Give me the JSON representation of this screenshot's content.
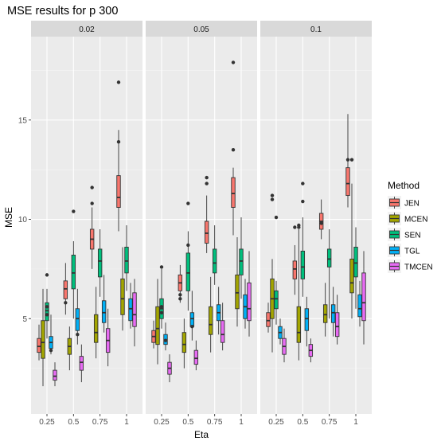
{
  "chart_data": {
    "type": "boxplot",
    "title": "MSE results for p 300",
    "xlabel": "Eta",
    "ylabel": "MSE",
    "ylim": [
      0.2,
      19.2
    ],
    "y_ticks": [
      5,
      10,
      15
    ],
    "x_ticks": [
      "0.25",
      "0.5",
      "0.75",
      "1"
    ],
    "legend": {
      "title": "Method",
      "position": "right",
      "entries": [
        {
          "name": "JEN",
          "color": "#F8766D"
        },
        {
          "name": "MCEN",
          "color": "#A3A500"
        },
        {
          "name": "SEN",
          "color": "#00BF7D"
        },
        {
          "name": "TGL",
          "color": "#00B0F6"
        },
        {
          "name": "TMCEN",
          "color": "#E76BF3"
        }
      ]
    },
    "grid": true,
    "panels": [
      {
        "label": "0.02",
        "groups": [
          {
            "eta": "0.25",
            "boxes": [
              {
                "method": "JEN",
                "min": 2.9,
                "q1": 3.3,
                "median": 3.6,
                "q3": 4.0,
                "max": 4.7,
                "outliers": []
              },
              {
                "method": "MCEN",
                "min": 1.6,
                "q1": 3.0,
                "median": 3.8,
                "q3": 4.9,
                "max": 6.5,
                "outliers": []
              },
              {
                "method": "SEN",
                "min": 4.0,
                "q1": 4.9,
                "median": 5.4,
                "q3": 5.8,
                "max": 6.5,
                "outliers": [
                  7.2,
                  5.6,
                  5.2
                ]
              },
              {
                "method": "TGL",
                "min": 3.2,
                "q1": 3.5,
                "median": 3.8,
                "q3": 4.1,
                "max": 5.2,
                "outliers": [
                  3.4
                ]
              },
              {
                "method": "TMCEN",
                "min": 1.6,
                "q1": 1.9,
                "median": 2.1,
                "q3": 2.4,
                "max": 2.8,
                "outliers": []
              }
            ]
          },
          {
            "eta": "0.5",
            "boxes": [
              {
                "method": "JEN",
                "min": 5.2,
                "q1": 6.0,
                "median": 6.5,
                "q3": 6.9,
                "max": 7.8,
                "outliers": [
                  5.8
                ]
              },
              {
                "method": "MCEN",
                "min": 2.4,
                "q1": 3.2,
                "median": 3.6,
                "q3": 4.0,
                "max": 4.6,
                "outliers": []
              },
              {
                "method": "SEN",
                "min": 5.0,
                "q1": 6.5,
                "median": 7.3,
                "q3": 8.2,
                "max": 8.9,
                "outliers": [
                  10.4
                ]
              },
              {
                "method": "TGL",
                "min": 3.7,
                "q1": 4.4,
                "median": 5.0,
                "q3": 5.5,
                "max": 6.5,
                "outliers": [
                  4.2
                ]
              },
              {
                "method": "TMCEN",
                "min": 1.8,
                "q1": 2.4,
                "median": 2.8,
                "q3": 3.1,
                "max": 3.7,
                "outliers": []
              }
            ]
          },
          {
            "eta": "0.75",
            "boxes": [
              {
                "method": "JEN",
                "min": 7.5,
                "q1": 8.5,
                "median": 9.0,
                "q3": 9.5,
                "max": 10.6,
                "outliers": [
                  11.6,
                  10.8
                ]
              },
              {
                "method": "MCEN",
                "min": 3.0,
                "q1": 3.8,
                "median": 4.3,
                "q3": 5.2,
                "max": 6.6,
                "outliers": []
              },
              {
                "method": "SEN",
                "min": 6.1,
                "q1": 7.1,
                "median": 7.9,
                "q3": 8.5,
                "max": 9.5,
                "outliers": []
              },
              {
                "method": "TGL",
                "min": 4.3,
                "q1": 4.8,
                "median": 5.3,
                "q3": 5.9,
                "max": 7.2,
                "outliers": []
              },
              {
                "method": "TMCEN",
                "min": 2.6,
                "q1": 3.3,
                "median": 3.9,
                "q3": 4.5,
                "max": 5.5,
                "outliers": []
              }
            ]
          },
          {
            "eta": "1",
            "boxes": [
              {
                "method": "JEN",
                "min": 9.4,
                "q1": 10.6,
                "median": 11.1,
                "q3": 12.2,
                "max": 14.5,
                "outliers": [
                  16.9,
                  13.9
                ]
              },
              {
                "method": "MCEN",
                "min": 4.4,
                "q1": 5.2,
                "median": 6.0,
                "q3": 7.0,
                "max": 8.6,
                "outliers": []
              },
              {
                "method": "SEN",
                "min": 6.4,
                "q1": 7.3,
                "median": 7.9,
                "q3": 8.6,
                "max": 9.7,
                "outliers": []
              },
              {
                "method": "TGL",
                "min": 4.5,
                "q1": 4.9,
                "median": 5.5,
                "q3": 6.0,
                "max": 6.8,
                "outliers": []
              },
              {
                "method": "TMCEN",
                "min": 3.6,
                "q1": 4.6,
                "median": 5.2,
                "q3": 6.3,
                "max": 7.0,
                "outliers": []
              }
            ]
          }
        ]
      },
      {
        "label": "0.05",
        "groups": [
          {
            "eta": "0.25",
            "boxes": [
              {
                "method": "JEN",
                "min": 3.5,
                "q1": 3.8,
                "median": 4.1,
                "q3": 4.4,
                "max": 4.9,
                "outliers": []
              },
              {
                "method": "MCEN",
                "min": 2.7,
                "q1": 3.7,
                "median": 4.5,
                "q3": 5.6,
                "max": 7.0,
                "outliers": []
              },
              {
                "method": "SEN",
                "min": 4.5,
                "q1": 5.0,
                "median": 5.5,
                "q3": 6.0,
                "max": 7.5,
                "outliers": [
                  7.6,
                  5.6,
                  5.3
                ]
              },
              {
                "method": "TGL",
                "min": 3.4,
                "q1": 3.7,
                "median": 3.9,
                "q3": 4.2,
                "max": 4.8,
                "outliers": [
                  3.9
                ]
              },
              {
                "method": "TMCEN",
                "min": 1.8,
                "q1": 2.2,
                "median": 2.5,
                "q3": 2.8,
                "max": 3.2,
                "outliers": []
              }
            ]
          },
          {
            "eta": "0.5",
            "boxes": [
              {
                "method": "JEN",
                "min": 5.8,
                "q1": 6.4,
                "median": 6.8,
                "q3": 7.2,
                "max": 7.7,
                "outliers": [
                  6.2,
                  6.0
                ]
              },
              {
                "method": "MCEN",
                "min": 2.5,
                "q1": 3.3,
                "median": 3.7,
                "q3": 4.3,
                "max": 5.0,
                "outliers": []
              },
              {
                "method": "SEN",
                "min": 5.4,
                "q1": 6.4,
                "median": 7.3,
                "q3": 8.3,
                "max": 9.4,
                "outliers": [
                  10.8,
                  8.7
                ]
              },
              {
                "method": "TGL",
                "min": 3.9,
                "q1": 4.6,
                "median": 5.0,
                "q3": 5.3,
                "max": 6.4,
                "outliers": [
                  4.6
                ]
              },
              {
                "method": "TMCEN",
                "min": 2.4,
                "q1": 2.7,
                "median": 3.0,
                "q3": 3.4,
                "max": 3.9,
                "outliers": []
              }
            ]
          },
          {
            "eta": "0.75",
            "boxes": [
              {
                "method": "JEN",
                "min": 8.3,
                "q1": 8.8,
                "median": 9.3,
                "q3": 9.9,
                "max": 11.2,
                "outliers": [
                  12.1,
                  11.8
                ]
              },
              {
                "method": "MCEN",
                "min": 3.3,
                "q1": 4.2,
                "median": 4.7,
                "q3": 5.6,
                "max": 7.1,
                "outliers": []
              },
              {
                "method": "SEN",
                "min": 6.7,
                "q1": 7.3,
                "median": 7.8,
                "q3": 8.5,
                "max": 9.7,
                "outliers": []
              },
              {
                "method": "TGL",
                "min": 4.2,
                "q1": 4.9,
                "median": 5.3,
                "q3": 5.7,
                "max": 6.6,
                "outliers": []
              },
              {
                "method": "TMCEN",
                "min": 3.4,
                "q1": 3.8,
                "median": 4.2,
                "q3": 4.9,
                "max": 5.8,
                "outliers": []
              }
            ]
          },
          {
            "eta": "1",
            "boxes": [
              {
                "method": "JEN",
                "min": 9.2,
                "q1": 10.6,
                "median": 11.3,
                "q3": 12.1,
                "max": 12.6,
                "outliers": [
                  17.9,
                  13.5
                ]
              },
              {
                "method": "MCEN",
                "min": 4.6,
                "q1": 5.5,
                "median": 6.3,
                "q3": 7.2,
                "max": 9.1,
                "outliers": []
              },
              {
                "method": "SEN",
                "min": 6.0,
                "q1": 7.2,
                "median": 7.9,
                "q3": 8.5,
                "max": 10.1,
                "outliers": []
              },
              {
                "method": "TGL",
                "min": 4.5,
                "q1": 5.0,
                "median": 5.6,
                "q3": 6.2,
                "max": 7.0,
                "outliers": []
              },
              {
                "method": "TMCEN",
                "min": 4.1,
                "q1": 4.9,
                "median": 5.5,
                "q3": 6.8,
                "max": 8.4,
                "outliers": []
              }
            ]
          }
        ]
      },
      {
        "label": "0.1",
        "groups": [
          {
            "eta": "0.25",
            "boxes": [
              {
                "method": "JEN",
                "min": 4.3,
                "q1": 4.6,
                "median": 4.9,
                "q3": 5.3,
                "max": 5.8,
                "outliers": []
              },
              {
                "method": "MCEN",
                "min": 3.3,
                "q1": 5.0,
                "median": 6.0,
                "q3": 7.0,
                "max": 8.0,
                "outliers": [
                  11.2,
                  11.0
                ]
              },
              {
                "method": "SEN",
                "min": 4.7,
                "q1": 5.5,
                "median": 6.0,
                "q3": 6.4,
                "max": 6.9,
                "outliers": [
                  10.1
                ]
              },
              {
                "method": "TGL",
                "min": 3.7,
                "q1": 4.0,
                "median": 4.3,
                "q3": 4.6,
                "max": 5.0,
                "outliers": []
              },
              {
                "method": "TMCEN",
                "min": 2.8,
                "q1": 3.2,
                "median": 3.6,
                "q3": 4.0,
                "max": 4.5,
                "outliers": []
              }
            ]
          },
          {
            "eta": "0.5",
            "boxes": [
              {
                "method": "JEN",
                "min": 6.2,
                "q1": 7.0,
                "median": 7.5,
                "q3": 7.9,
                "max": 8.7,
                "outliers": [
                  9.6
                ]
              },
              {
                "method": "MCEN",
                "min": 2.9,
                "q1": 3.8,
                "median": 4.3,
                "q3": 5.6,
                "max": 9.5,
                "outliers": [
                  9.7,
                  9.6
                ]
              },
              {
                "method": "SEN",
                "min": 6.1,
                "q1": 7.0,
                "median": 7.6,
                "q3": 8.4,
                "max": 10.1,
                "outliers": [
                  11.8,
                  10.9
                ]
              },
              {
                "method": "TGL",
                "min": 3.6,
                "q1": 4.4,
                "median": 5.0,
                "q3": 5.5,
                "max": 6.1,
                "outliers": []
              },
              {
                "method": "TMCEN",
                "min": 2.8,
                "q1": 3.1,
                "median": 3.4,
                "q3": 3.7,
                "max": 4.0,
                "outliers": []
              }
            ]
          },
          {
            "eta": "0.75",
            "boxes": [
              {
                "method": "JEN",
                "min": 9.0,
                "q1": 9.5,
                "median": 9.9,
                "q3": 10.3,
                "max": 11.0,
                "outliers": [
                  9.8
                ]
              },
              {
                "method": "MCEN",
                "min": 4.1,
                "q1": 4.8,
                "median": 5.2,
                "q3": 5.7,
                "max": 6.8,
                "outliers": []
              },
              {
                "method": "SEN",
                "min": 5.0,
                "q1": 7.6,
                "median": 8.0,
                "q3": 8.5,
                "max": 9.5,
                "outliers": []
              },
              {
                "method": "TGL",
                "min": 4.1,
                "q1": 4.8,
                "median": 5.3,
                "q3": 5.7,
                "max": 6.6,
                "outliers": []
              },
              {
                "method": "TMCEN",
                "min": 3.7,
                "q1": 4.1,
                "median": 4.6,
                "q3": 5.3,
                "max": 6.2,
                "outliers": []
              }
            ]
          },
          {
            "eta": "1",
            "boxes": [
              {
                "method": "JEN",
                "min": 10.6,
                "q1": 11.2,
                "median": 11.8,
                "q3": 12.6,
                "max": 15.3,
                "outliers": [
                  13.0
                ]
              },
              {
                "method": "MCEN",
                "min": 5.0,
                "q1": 6.3,
                "median": 6.8,
                "q3": 8.0,
                "max": 11.8,
                "outliers": [
                  13.0
                ]
              },
              {
                "method": "SEN",
                "min": 5.5,
                "q1": 7.1,
                "median": 7.8,
                "q3": 8.6,
                "max": 9.6,
                "outliers": []
              },
              {
                "method": "TGL",
                "min": 4.6,
                "q1": 5.1,
                "median": 5.5,
                "q3": 6.2,
                "max": 6.9,
                "outliers": []
              },
              {
                "method": "TMCEN",
                "min": 3.7,
                "q1": 4.9,
                "median": 5.8,
                "q3": 7.3,
                "max": 8.4,
                "outliers": []
              }
            ]
          }
        ]
      }
    ]
  }
}
